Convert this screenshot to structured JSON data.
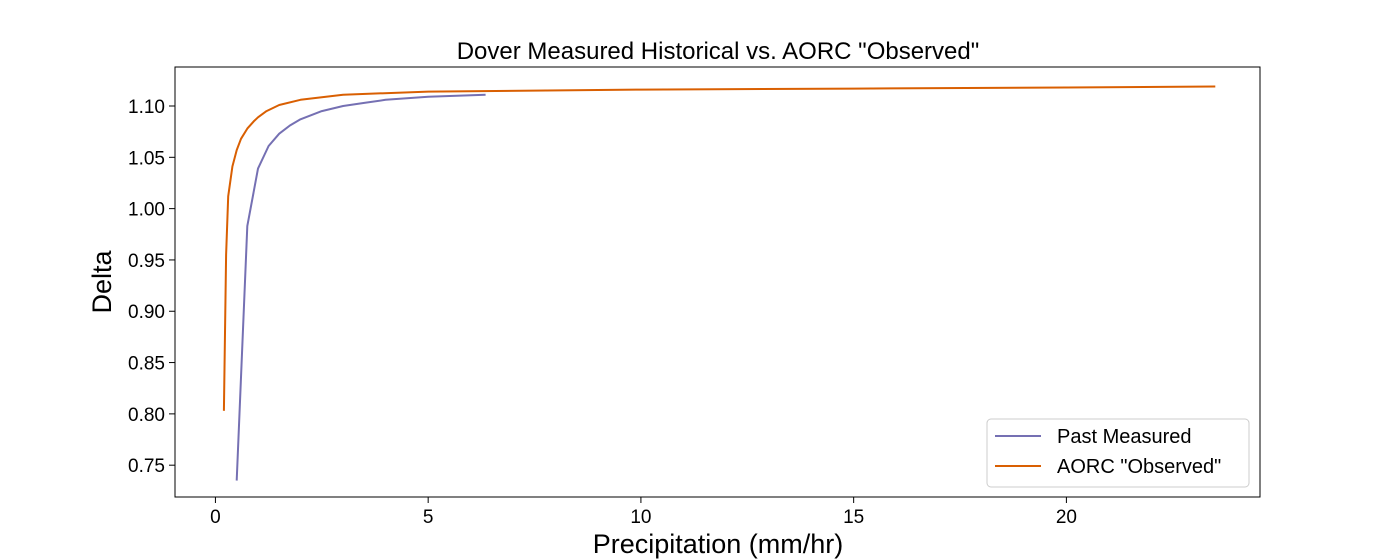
{
  "chart_data": {
    "type": "line",
    "title": "Dover Measured Historical vs. AORC \"Observed\"",
    "xlabel": "Precipitation (mm/hr)",
    "ylabel": "Delta",
    "xlim": [
      -0.95,
      24.55
    ],
    "ylim": [
      0.719,
      1.138
    ],
    "xticks": [
      0,
      5,
      10,
      15,
      20
    ],
    "yticks": [
      0.75,
      0.8,
      0.85,
      0.9,
      0.95,
      1.0,
      1.05,
      1.1
    ],
    "grid": false,
    "legend_position": "lower-right",
    "series": [
      {
        "name": "Past Measured",
        "color": "#7570b3",
        "x": [
          0.5,
          0.75,
          1.0,
          1.25,
          1.5,
          1.75,
          2.0,
          2.5,
          3.0,
          3.5,
          4.0,
          5.0,
          6.35
        ],
        "y": [
          0.735,
          0.983,
          1.039,
          1.061,
          1.073,
          1.081,
          1.087,
          1.095,
          1.1,
          1.103,
          1.106,
          1.109,
          1.111
        ]
      },
      {
        "name": "AORC \"Observed\"",
        "color": "#d95f02",
        "x": [
          0.2,
          0.25,
          0.3,
          0.4,
          0.5,
          0.6,
          0.75,
          0.9,
          1.0,
          1.2,
          1.5,
          2.0,
          3.0,
          5.0,
          10.0,
          15.0,
          20.0,
          23.5
        ],
        "y": [
          0.803,
          0.955,
          1.012,
          1.041,
          1.057,
          1.068,
          1.078,
          1.085,
          1.089,
          1.095,
          1.101,
          1.106,
          1.111,
          1.114,
          1.116,
          1.117,
          1.118,
          1.119
        ]
      }
    ]
  }
}
